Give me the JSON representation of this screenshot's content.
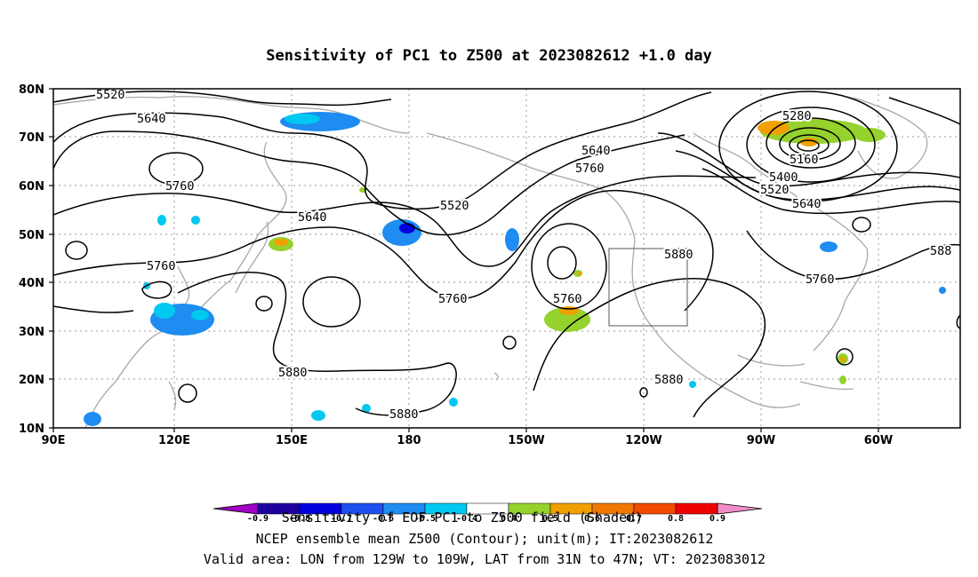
{
  "title": "Sensitivity of PC1 to Z500 at 2023082612 +1.0 day",
  "map": {
    "lon_labels": [
      "90E",
      "120E",
      "150E",
      "180",
      "150W",
      "120W",
      "90W",
      "60W"
    ],
    "lat_labels": [
      "80N",
      "70N",
      "60N",
      "50N",
      "40N",
      "30N",
      "20N",
      "10N"
    ],
    "contour_labels": [
      "5520",
      "5640",
      "5760",
      "5640",
      "5760",
      "5880",
      "5880",
      "5760",
      "5520",
      "5640",
      "5760",
      "5760",
      "5880",
      "5880",
      "5280",
      "5160",
      "5400",
      "5520",
      "5640",
      "5760",
      "588"
    ],
    "valid_box": "LON 129W-109W, LAT 31N-47N"
  },
  "colorbar": {
    "levels": [
      "-0.9",
      "-0.8",
      "-0.7",
      "-0.6",
      "-0.5",
      "-0.4",
      "0.4",
      "0.5",
      "0.6",
      "0.7",
      "0.8",
      "0.9"
    ],
    "colors": [
      "#a000c8",
      "#1e00a0",
      "#0000e0",
      "#1e50f0",
      "#1e8cf0",
      "#00c8f0",
      "#ffffff",
      "#96d22d",
      "#f0a000",
      "#f07800",
      "#f04b00",
      "#f00000",
      "#f08cc8"
    ]
  },
  "captions": {
    "line1": "Sensitivity of EOF PC1 to Z500 field (Shaded)",
    "line2": "NCEP ensemble mean Z500 (Contour); unit(m); IT:2023082612",
    "line3": "Valid area: LON from 129W to 109W, LAT from 31N to 47N; VT: 2023083012"
  }
}
